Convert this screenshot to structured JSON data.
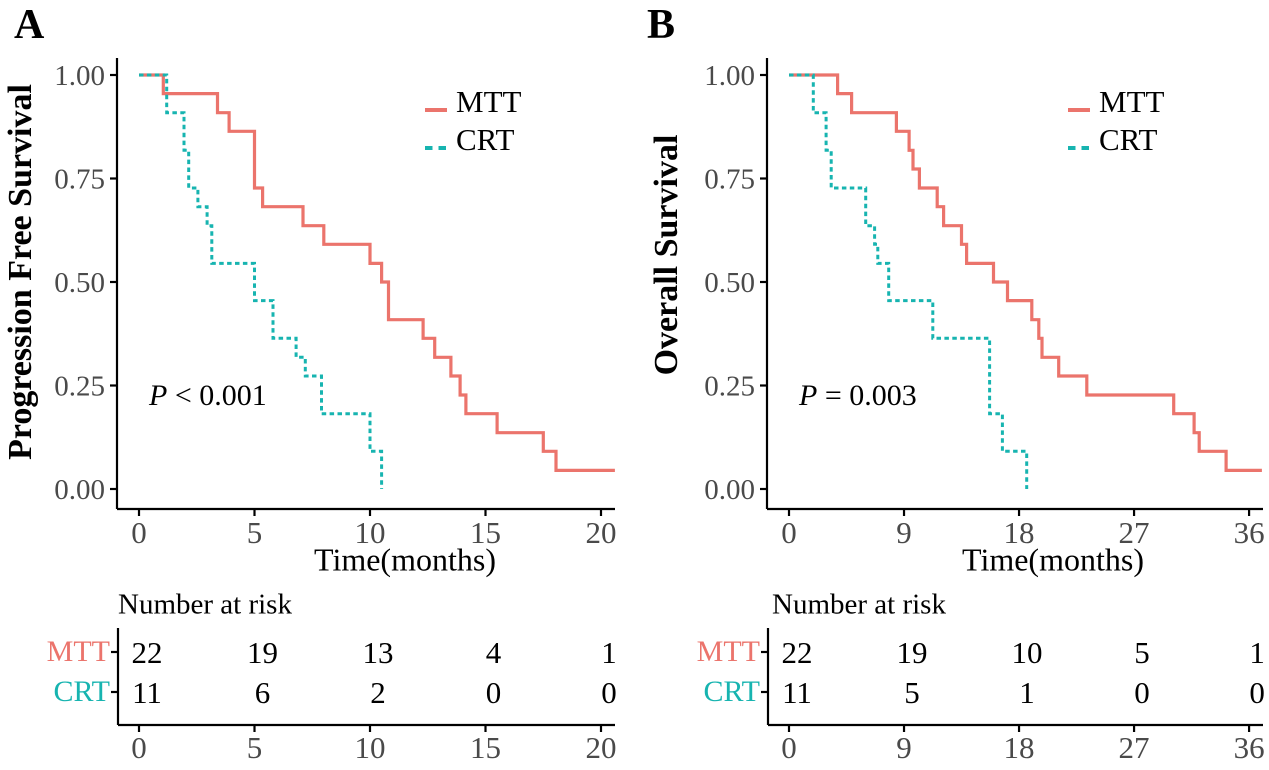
{
  "colors": {
    "mtt": "#EB746C",
    "crt": "#17B4B0",
    "tick_label": "#4a4a4a",
    "axis": "#000000"
  },
  "chart_data": [
    {
      "type": "line",
      "subtype": "kaplan-meier-step",
      "panel": "A",
      "ylabel": "Progression Free Survival",
      "xlabel": "Time(months)",
      "p_value": {
        "prefix": "P",
        "rest": " < 0.001"
      },
      "legend": [
        {
          "label": "MTT",
          "style": "solid",
          "color_key": "mtt"
        },
        {
          "label": "CRT",
          "style": "dashed",
          "color_key": "crt"
        }
      ],
      "xlim": [
        0,
        20.6
      ],
      "ylim": [
        0,
        1
      ],
      "grid": false,
      "legend_position": "upper-right-inside",
      "x_ticks": [
        {
          "value": 0,
          "label": "0"
        },
        {
          "value": 5,
          "label": "5"
        },
        {
          "value": 10,
          "label": "10"
        },
        {
          "value": 15,
          "label": "15"
        },
        {
          "value": 20,
          "label": "20"
        }
      ],
      "y_ticks": [
        {
          "value": 1.0,
          "label": "1.00"
        },
        {
          "value": 0.75,
          "label": "0.75"
        },
        {
          "value": 0.5,
          "label": "0.50"
        },
        {
          "value": 0.25,
          "label": "0.25"
        },
        {
          "value": 0.0,
          "label": "0.00"
        }
      ],
      "series": [
        {
          "name": "MTT",
          "color_key": "mtt",
          "dash": false,
          "end": 20.6,
          "steps": [
            [
              0,
              1
            ],
            [
              1.05,
              0.955
            ],
            [
              3.4,
              0.909
            ],
            [
              3.9,
              0.864
            ],
            [
              5.0,
              0.727
            ],
            [
              5.35,
              0.682
            ],
            [
              7.1,
              0.636
            ],
            [
              8.0,
              0.591
            ],
            [
              10.0,
              0.545
            ],
            [
              10.5,
              0.5
            ],
            [
              10.8,
              0.409
            ],
            [
              12.3,
              0.364
            ],
            [
              12.8,
              0.318
            ],
            [
              13.5,
              0.273
            ],
            [
              13.9,
              0.227
            ],
            [
              14.15,
              0.182
            ],
            [
              15.5,
              0.136
            ],
            [
              17.5,
              0.091
            ],
            [
              18.05,
              0.045
            ]
          ]
        },
        {
          "name": "CRT",
          "color_key": "crt",
          "dash": true,
          "end": 10.5,
          "steps": [
            [
              0,
              1
            ],
            [
              1.2,
              0.909
            ],
            [
              1.95,
              0.818
            ],
            [
              2.15,
              0.727
            ],
            [
              2.55,
              0.682
            ],
            [
              2.95,
              0.636
            ],
            [
              3.15,
              0.545
            ],
            [
              5.0,
              0.455
            ],
            [
              5.8,
              0.364
            ],
            [
              6.8,
              0.318
            ],
            [
              7.2,
              0.273
            ],
            [
              7.9,
              0.182
            ],
            [
              10.0,
              0.091
            ],
            [
              10.5,
              0
            ]
          ]
        }
      ],
      "risk_table": {
        "title": "Number at risk",
        "rows": [
          {
            "name": "MTT",
            "color_key": "mtt",
            "values": [
              "22",
              "19",
              "13",
              "4",
              "1"
            ]
          },
          {
            "name": "CRT",
            "color_key": "crt",
            "values": [
              "11",
              "6",
              "2",
              "0",
              "0"
            ]
          }
        ]
      }
    },
    {
      "type": "line",
      "subtype": "kaplan-meier-step",
      "panel": "B",
      "ylabel": "Overall Survival",
      "xlabel": "Time(months)",
      "p_value": {
        "prefix": "P",
        "rest": " = 0.003"
      },
      "legend": [
        {
          "label": "MTT",
          "style": "solid",
          "color_key": "mtt"
        },
        {
          "label": "CRT",
          "style": "dashed",
          "color_key": "crt"
        }
      ],
      "xlim": [
        0,
        37
      ],
      "ylim": [
        0,
        1
      ],
      "grid": false,
      "legend_position": "upper-right-inside",
      "x_ticks": [
        {
          "value": 0,
          "label": "0"
        },
        {
          "value": 9,
          "label": "9"
        },
        {
          "value": 18,
          "label": "18"
        },
        {
          "value": 27,
          "label": "27"
        },
        {
          "value": 36,
          "label": "36"
        }
      ],
      "y_ticks": [
        {
          "value": 1.0,
          "label": "1.00"
        },
        {
          "value": 0.75,
          "label": "0.75"
        },
        {
          "value": 0.5,
          "label": "0.50"
        },
        {
          "value": 0.25,
          "label": "0.25"
        },
        {
          "value": 0.0,
          "label": "0.00"
        }
      ],
      "series": [
        {
          "name": "MTT",
          "color_key": "mtt",
          "dash": false,
          "end": 37,
          "steps": [
            [
              0,
              1
            ],
            [
              3.8,
              0.955
            ],
            [
              4.9,
              0.909
            ],
            [
              8.4,
              0.864
            ],
            [
              9.4,
              0.818
            ],
            [
              9.7,
              0.773
            ],
            [
              10.2,
              0.727
            ],
            [
              11.6,
              0.682
            ],
            [
              12.1,
              0.636
            ],
            [
              13.5,
              0.591
            ],
            [
              13.9,
              0.545
            ],
            [
              16.0,
              0.5
            ],
            [
              17.1,
              0.455
            ],
            [
              19.0,
              0.409
            ],
            [
              19.55,
              0.364
            ],
            [
              19.8,
              0.318
            ],
            [
              21.1,
              0.273
            ],
            [
              23.3,
              0.227
            ],
            [
              30.1,
              0.182
            ],
            [
              31.7,
              0.136
            ],
            [
              32.1,
              0.091
            ],
            [
              34.2,
              0.045
            ]
          ]
        },
        {
          "name": "CRT",
          "color_key": "crt",
          "dash": true,
          "end": 18.6,
          "steps": [
            [
              0,
              1
            ],
            [
              1.9,
              0.909
            ],
            [
              2.9,
              0.818
            ],
            [
              3.3,
              0.727
            ],
            [
              6.0,
              0.636
            ],
            [
              6.7,
              0.591
            ],
            [
              6.95,
              0.545
            ],
            [
              7.8,
              0.455
            ],
            [
              11.25,
              0.364
            ],
            [
              15.7,
              0.182
            ],
            [
              16.7,
              0.091
            ],
            [
              18.6,
              0
            ]
          ]
        }
      ],
      "risk_table": {
        "title": "Number at risk",
        "rows": [
          {
            "name": "MTT",
            "color_key": "mtt",
            "values": [
              "22",
              "19",
              "10",
              "5",
              "1"
            ]
          },
          {
            "name": "CRT",
            "color_key": "crt",
            "values": [
              "11",
              "5",
              "1",
              "0",
              "0"
            ]
          }
        ]
      }
    }
  ]
}
